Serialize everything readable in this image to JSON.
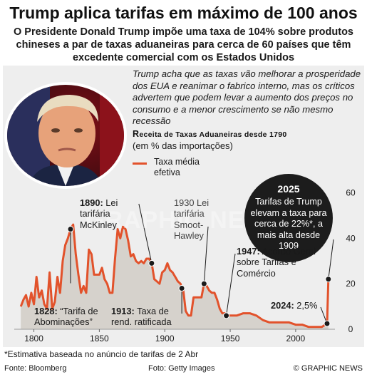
{
  "header": {
    "title": "Trump aplica tarifas em máximo de 100 anos",
    "subtitle": "O Presidente Donald Trump impõe uma taxa de 104% sobre produtos chineses a par de taxas aduaneiras para cerca de 60 países que têm excedente comercial com os Estados Unidos"
  },
  "intro": "Trump acha que as taxas vão melhorar a prosperidade dos EUA e reanimar o fabrico interno, mas os críticos advertem que podem levar a aumento dos preços no consumo e a menor crescimento se não mesmo recessão",
  "chart_title_lead": "R",
  "chart_title_rest": "eceita de Taxas Aduaneiras desde 1790",
  "chart_subtitle": "(em % das importações)",
  "legend_label": "Taxa média efetiva",
  "callout_2025": {
    "year": "2025",
    "text": "Tarifas de Trump elevam a taxa para cerca de 22%*, a mais alta desde 1909"
  },
  "annotations": {
    "a1890_year": "1890:",
    "a1890_text": "Lei tarifária McKinley",
    "a1930_year": "1930",
    "a1930_text": "Lei tarifária Smoot-Hawley",
    "a1947_year": "1947:",
    "a1947_text": "Acordo Geral sobre Tarifas e Comércio",
    "a1828_year": "1828:",
    "a1828_text": "“Tarifa de Abominações”",
    "a1913_year": "1913:",
    "a1913_text": "Taxa de rend. ratificada",
    "a2024_year": "2024:",
    "a2024_text": "2,5%"
  },
  "footnote": "*Estimativa baseada no anúncio de tarifas de 2 Abr",
  "footer": {
    "source": "Fonte: Bloomberg",
    "photo": "Foto: Getty Images",
    "credit": "© GRAPHIC NEWS"
  },
  "watermark": "GRAPHIC NEWS",
  "colors": {
    "line": "#e2522b",
    "area": "#d6d2cc",
    "panel": "#eeeeee",
    "callout_bg": "#1c1c1c"
  },
  "chart_data": {
    "type": "area",
    "series": [
      {
        "name": "Taxa média efetiva",
        "x": [
          1790,
          1792,
          1794,
          1796,
          1798,
          1800,
          1802,
          1804,
          1806,
          1808,
          1810,
          1812,
          1814,
          1816,
          1818,
          1820,
          1822,
          1824,
          1826,
          1828,
          1830,
          1832,
          1834,
          1836,
          1838,
          1840,
          1842,
          1844,
          1846,
          1848,
          1850,
          1852,
          1854,
          1856,
          1858,
          1860,
          1862,
          1864,
          1866,
          1868,
          1870,
          1872,
          1874,
          1876,
          1878,
          1880,
          1882,
          1884,
          1886,
          1888,
          1890,
          1892,
          1894,
          1896,
          1898,
          1900,
          1902,
          1904,
          1906,
          1908,
          1910,
          1912,
          1913,
          1914,
          1916,
          1918,
          1920,
          1922,
          1924,
          1926,
          1928,
          1930,
          1932,
          1934,
          1936,
          1938,
          1940,
          1942,
          1944,
          1946,
          1947,
          1950,
          1955,
          1960,
          1965,
          1970,
          1975,
          1980,
          1985,
          1990,
          1995,
          2000,
          2005,
          2010,
          2015,
          2020,
          2024,
          2025
        ],
        "values": [
          10,
          13,
          15,
          10,
          16,
          11,
          23,
          14,
          17,
          11,
          9,
          25,
          9,
          12,
          23,
          16,
          30,
          37,
          40,
          44,
          46,
          33,
          24,
          16,
          19,
          16,
          35,
          33,
          24,
          24,
          24,
          27,
          22,
          20,
          16,
          16,
          31,
          44,
          40,
          45,
          44,
          39,
          32,
          33,
          30,
          29,
          30,
          29,
          31,
          31,
          29,
          22,
          21,
          20,
          25,
          26,
          29,
          26,
          25,
          23,
          21,
          20,
          18,
          18,
          8,
          6,
          6,
          14,
          14,
          14,
          14,
          20,
          19,
          17,
          16,
          16,
          13,
          9,
          7,
          7,
          6,
          6,
          6,
          7,
          7,
          6,
          4,
          3,
          3,
          3,
          3,
          2,
          2,
          1,
          1,
          1,
          2.5,
          22
        ]
      }
    ],
    "x_ticks": [
      1800,
      1850,
      1900,
      1950,
      2000
    ],
    "y_ticks": [
      0,
      20,
      40,
      60
    ],
    "xlim": [
      1785,
      2030
    ],
    "ylim": [
      0,
      62
    ],
    "xlabel": "",
    "ylabel": "",
    "marked_points": [
      1828,
      1890,
      1913,
      1930,
      1947,
      2024,
      2025
    ]
  }
}
